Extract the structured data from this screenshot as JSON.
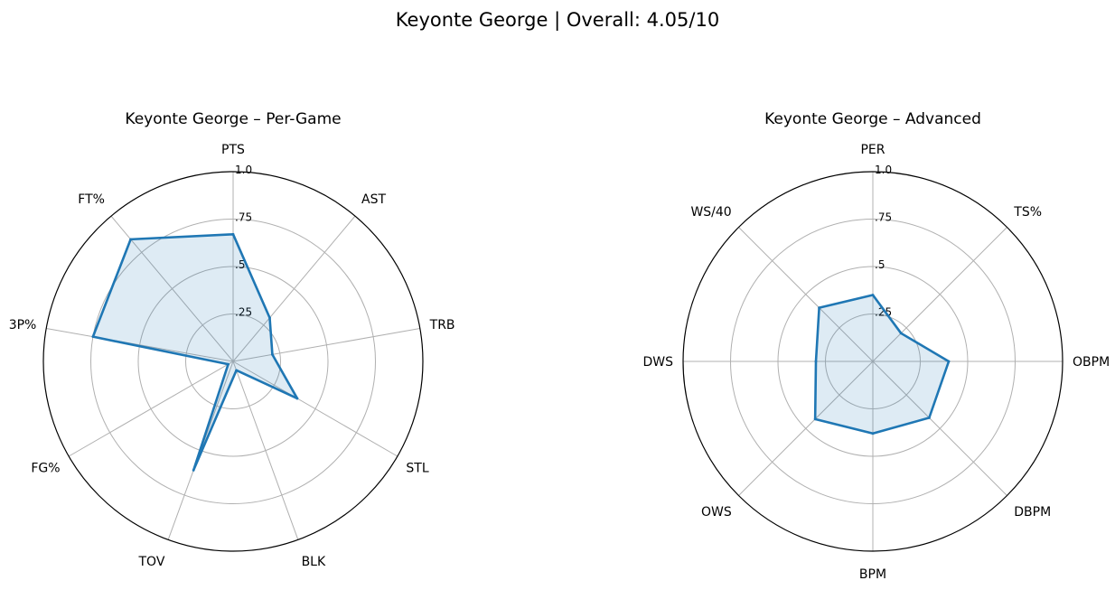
{
  "suptitle": "Keyonte George | Overall: 4.05/10",
  "colors": {
    "line": "#1f77b4",
    "fill": "#1f77b4",
    "grid": "#b0b0b0",
    "frame": "#000000"
  },
  "chart_data": [
    {
      "type": "radar",
      "title": "Keyonte George – Per-Game",
      "rlim": [
        0,
        1
      ],
      "rticks": [
        0.25,
        0.5,
        0.75,
        1.0
      ],
      "rtick_labels": [
        ".25",
        ".5",
        ".75",
        "1.0"
      ],
      "grid": true,
      "categories": [
        "PTS",
        "AST",
        "TRB",
        "STL",
        "BLK",
        "TOV",
        "FG%",
        "3P%",
        "FT%"
      ],
      "values": [
        0.67,
        0.3,
        0.21,
        0.39,
        0.05,
        0.61,
        0.03,
        0.75,
        0.84
      ]
    },
    {
      "type": "radar",
      "title": "Keyonte George – Advanced",
      "rlim": [
        0,
        1
      ],
      "rticks": [
        0.25,
        0.5,
        0.75,
        1.0
      ],
      "rtick_labels": [
        ".25",
        ".5",
        ".75",
        "1.0"
      ],
      "grid": true,
      "categories": [
        "PER",
        "TS%",
        "OBPM",
        "DBPM",
        "BPM",
        "OWS",
        "DWS",
        "WS/40"
      ],
      "values": [
        0.35,
        0.21,
        0.4,
        0.42,
        0.38,
        0.43,
        0.3,
        0.4
      ]
    }
  ]
}
